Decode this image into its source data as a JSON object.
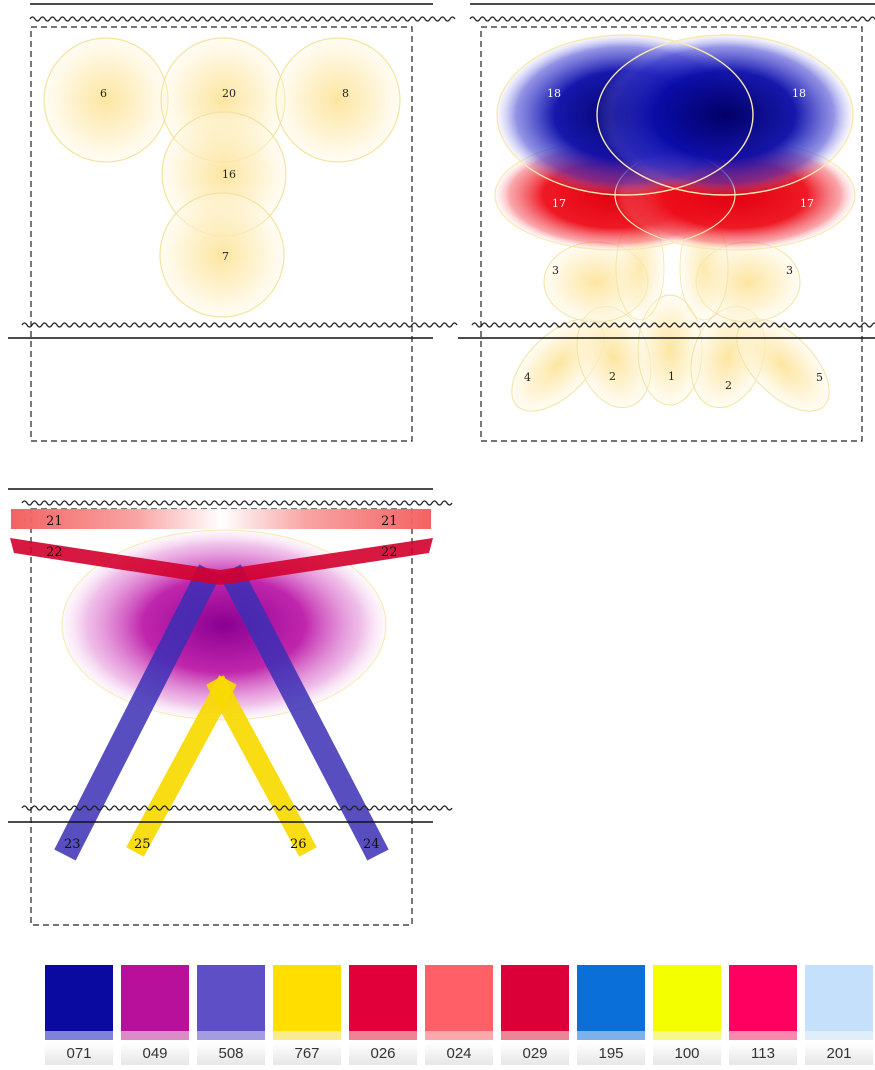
{
  "panels": {
    "top_left": {
      "discs": [
        {
          "label": "6"
        },
        {
          "label": "20"
        },
        {
          "label": "8"
        },
        {
          "label": "16"
        },
        {
          "label": "7"
        }
      ]
    },
    "top_right": {
      "blue_ovals": [
        {
          "label": "18"
        },
        {
          "label": "18"
        }
      ],
      "red_ovals": [
        {
          "label": "17"
        },
        {
          "label": "17"
        }
      ],
      "upper_yellow": [
        {
          "label": "3"
        },
        {
          "label": "3"
        }
      ],
      "lower_yellow": [
        {
          "label": "4"
        },
        {
          "label": "2"
        },
        {
          "label": "1"
        },
        {
          "label": "2"
        },
        {
          "label": "5"
        }
      ]
    },
    "bottom_left": {
      "bands": [
        {
          "label_left": "21",
          "label_right": "21"
        },
        {
          "label_left": "22",
          "label_right": "22"
        }
      ],
      "beams": [
        {
          "label": "23"
        },
        {
          "label": "25"
        },
        {
          "label": "26"
        },
        {
          "label": "24"
        }
      ]
    }
  },
  "colors": {
    "yellow_light": "#fde9a0",
    "blue_dark": "#0b0c9e",
    "red": "#e8000c",
    "band21": "#f25a5a",
    "band22": "#d3002e",
    "magenta": "#b0009a",
    "beam_blue": "#3b2fb5",
    "beam_yellow": "#f7d900"
  },
  "swatches": [
    {
      "code": "071",
      "color": "#0a0aa0",
      "light": "#7f82d8"
    },
    {
      "code": "049",
      "color": "#b8109a",
      "light": "#d98cc6"
    },
    {
      "code": "508",
      "color": "#5f4fc6",
      "light": "#a59be0"
    },
    {
      "code": "767",
      "color": "#ffde00",
      "light": "#f9ec90"
    },
    {
      "code": "026",
      "color": "#e2003a",
      "light": "#ee8396"
    },
    {
      "code": "024",
      "color": "#ff5f66",
      "light": "#f9a8ab"
    },
    {
      "code": "029",
      "color": "#dc0038",
      "light": "#ea8698"
    },
    {
      "code": "195",
      "color": "#0a6fd8",
      "light": "#7fb0ea"
    },
    {
      "code": "100",
      "color": "#f4ff00",
      "light": "#f6f88a"
    },
    {
      "code": "113",
      "color": "#ff0060",
      "light": "#f987ae"
    },
    {
      "code": "201",
      "color": "#c4e0fa",
      "light": "#e0eefb"
    }
  ]
}
